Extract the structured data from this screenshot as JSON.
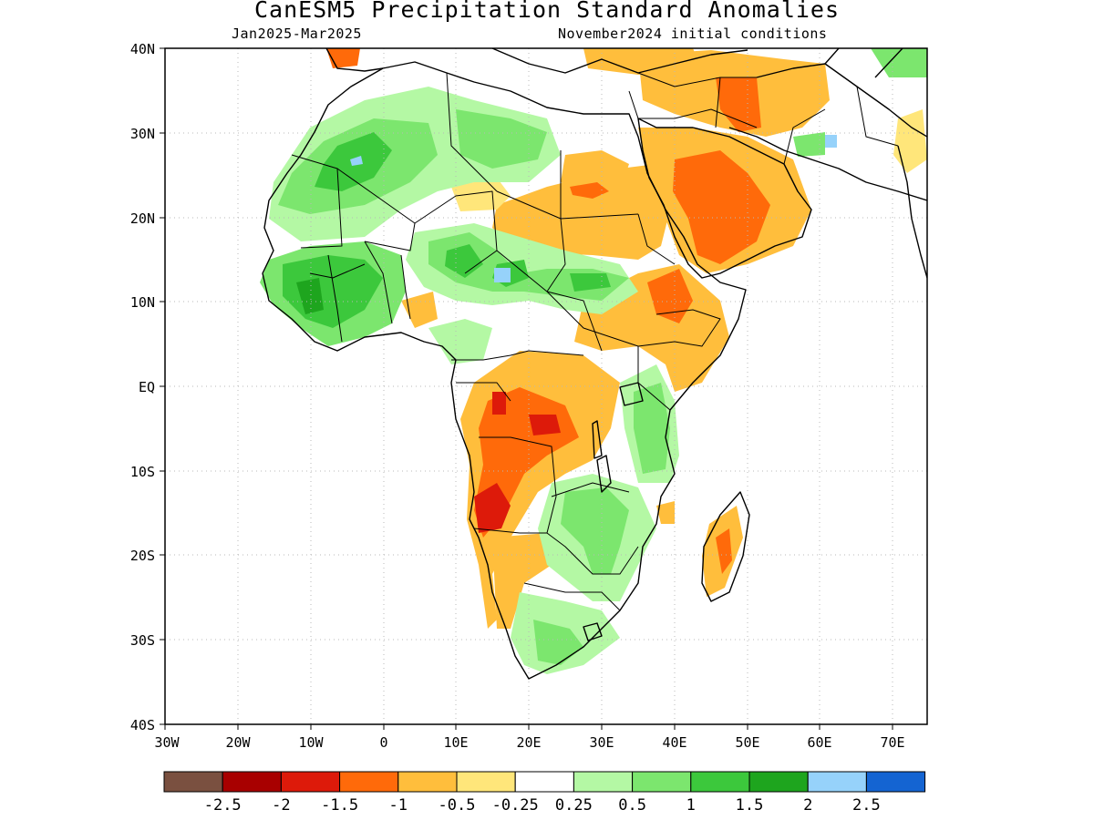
{
  "header": {
    "title": "CanESM5 Precipitation Standard Anomalies",
    "period": "Jan2025-Mar2025",
    "init": "November2024 initial conditions"
  },
  "axes": {
    "lat_labels": [
      "40N",
      "30N",
      "20N",
      "10N",
      "EQ",
      "10S",
      "20S",
      "30S",
      "40S"
    ],
    "lon_labels": [
      "30W",
      "20W",
      "10W",
      "0",
      "10E",
      "20E",
      "30E",
      "40E",
      "50E",
      "60E",
      "70E"
    ]
  },
  "colorbar": {
    "labels": [
      "-2.5",
      "-2",
      "-1.5",
      "-1",
      "-0.5",
      "-0.25",
      "0.25",
      "0.5",
      "1",
      "1.5",
      "2",
      "2.5"
    ],
    "colors": [
      "#7a5040",
      "#a80000",
      "#dd1a0a",
      "#ff6a0a",
      "#ffbe3c",
      "#ffe67a",
      "#ffffff",
      "#b4f8a4",
      "#7ce66e",
      "#3cc83c",
      "#1ea51e",
      "#96d2fa",
      "#1464d2"
    ]
  }
}
